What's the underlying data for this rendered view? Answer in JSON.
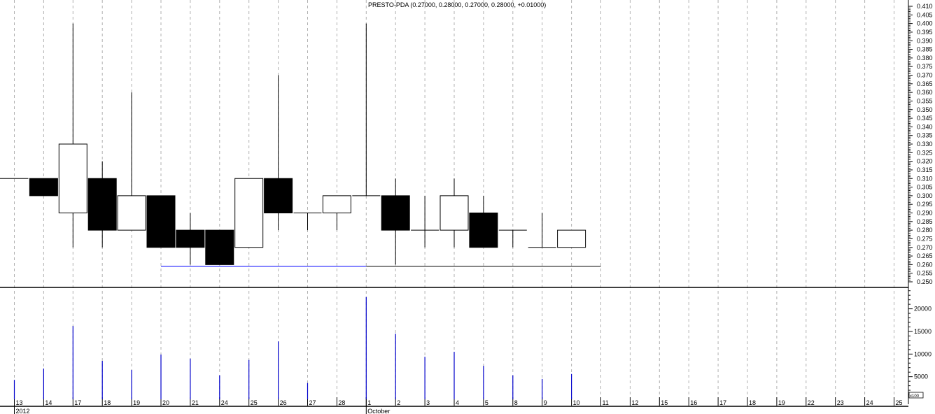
{
  "chart_data": [
    {
      "type": "candlestick",
      "title": "PRESTO-PDA (0.27000, 0.28000, 0.27000, 0.28000, +0.01000)",
      "ylim": [
        0.25,
        0.41
      ],
      "y_ticks": [
        "0.250",
        "0.255",
        "0.260",
        "0.265",
        "0.270",
        "0.275",
        "0.280",
        "0.285",
        "0.290",
        "0.295",
        "0.300",
        "0.305",
        "0.310",
        "0.315",
        "0.320",
        "0.325",
        "0.330",
        "0.335",
        "0.340",
        "0.345",
        "0.350",
        "0.355",
        "0.360",
        "0.365",
        "0.370",
        "0.375",
        "0.380",
        "0.385",
        "0.390",
        "0.395",
        "0.400",
        "0.405",
        "0.410"
      ],
      "grid": "vertical dashed",
      "candles": [
        {
          "date": "13",
          "o": 0.31,
          "h": 0.31,
          "l": 0.31,
          "c": 0.31
        },
        {
          "date": "14",
          "o": 0.31,
          "h": 0.31,
          "l": 0.3,
          "c": 0.3
        },
        {
          "date": "17",
          "o": 0.29,
          "h": 0.4,
          "l": 0.27,
          "c": 0.33
        },
        {
          "date": "18",
          "o": 0.31,
          "h": 0.32,
          "l": 0.27,
          "c": 0.28
        },
        {
          "date": "19",
          "o": 0.28,
          "h": 0.36,
          "l": 0.28,
          "c": 0.3
        },
        {
          "date": "20",
          "o": 0.3,
          "h": 0.3,
          "l": 0.27,
          "c": 0.27
        },
        {
          "date": "21",
          "o": 0.28,
          "h": 0.29,
          "l": 0.26,
          "c": 0.27
        },
        {
          "date": "24",
          "o": 0.28,
          "h": 0.28,
          "l": 0.26,
          "c": 0.26
        },
        {
          "date": "25",
          "o": 0.27,
          "h": 0.31,
          "l": 0.27,
          "c": 0.31
        },
        {
          "date": "26",
          "o": 0.31,
          "h": 0.37,
          "l": 0.28,
          "c": 0.29
        },
        {
          "date": "27",
          "o": 0.29,
          "h": 0.29,
          "l": 0.28,
          "c": 0.29
        },
        {
          "date": "28",
          "o": 0.29,
          "h": 0.3,
          "l": 0.28,
          "c": 0.3
        },
        {
          "date": "1",
          "o": 0.3,
          "h": 0.4,
          "l": 0.3,
          "c": 0.3
        },
        {
          "date": "2",
          "o": 0.3,
          "h": 0.31,
          "l": 0.26,
          "c": 0.28
        },
        {
          "date": "3",
          "o": 0.28,
          "h": 0.3,
          "l": 0.27,
          "c": 0.28
        },
        {
          "date": "4",
          "o": 0.28,
          "h": 0.31,
          "l": 0.27,
          "c": 0.3
        },
        {
          "date": "5",
          "o": 0.29,
          "h": 0.3,
          "l": 0.27,
          "c": 0.27
        },
        {
          "date": "8",
          "o": 0.28,
          "h": 0.28,
          "l": 0.27,
          "c": 0.28
        },
        {
          "date": "9",
          "o": 0.27,
          "h": 0.29,
          "l": 0.27,
          "c": 0.27
        },
        {
          "date": "10",
          "o": 0.27,
          "h": 0.28,
          "l": 0.27,
          "c": 0.28
        }
      ],
      "support_lines": [
        {
          "from": "20",
          "to": "1",
          "value": 0.259,
          "color": "#0000ff"
        },
        {
          "from": "1",
          "to": "11",
          "value": 0.259,
          "color": "#000000"
        }
      ],
      "colors": {
        "up": "#ffffff",
        "down": "#000000",
        "volume": "#0000cc",
        "grid": "#b0b0b0"
      }
    },
    {
      "type": "bar",
      "ylim": [
        0,
        24000
      ],
      "y_ticks": [
        "5000",
        "10000",
        "15000",
        "20000"
      ],
      "unit_label": "x100",
      "categories": [
        "13",
        "14",
        "17",
        "18",
        "19",
        "20",
        "21",
        "24",
        "25",
        "26",
        "27",
        "28",
        "1",
        "2",
        "3",
        "4",
        "5",
        "8",
        "9",
        "10"
      ],
      "values": [
        4300,
        6800,
        16200,
        8500,
        6500,
        9900,
        9000,
        5300,
        8700,
        12800,
        3600,
        0,
        22600,
        14500,
        9400,
        10500,
        7400,
        5300,
        4500,
        5600
      ]
    }
  ],
  "x_axis": {
    "days": [
      "13",
      "14",
      "17",
      "18",
      "19",
      "20",
      "21",
      "24",
      "25",
      "26",
      "27",
      "28",
      "1",
      "2",
      "3",
      "4",
      "5",
      "8",
      "9",
      "10",
      "11",
      "12",
      "15",
      "16",
      "17",
      "18",
      "19",
      "22",
      "23",
      "24",
      "25"
    ],
    "periods": [
      {
        "label": "2012",
        "at": 0
      },
      {
        "label": "October",
        "at": 12
      }
    ]
  }
}
